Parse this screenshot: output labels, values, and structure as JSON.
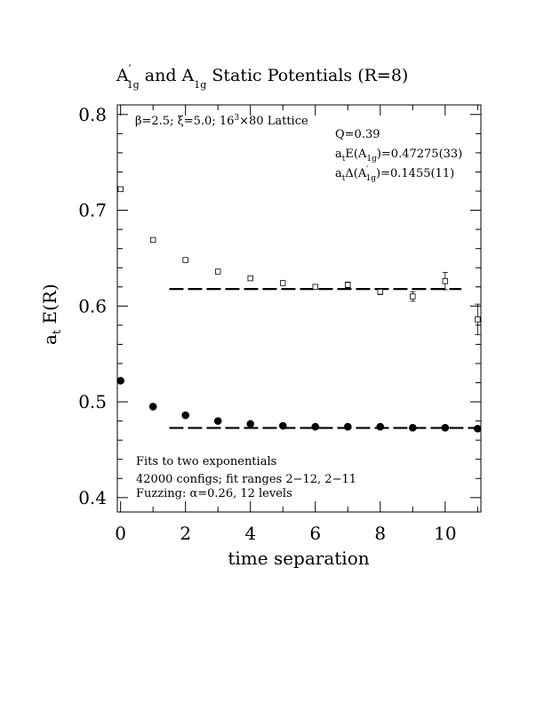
{
  "chart_data": {
    "type": "scatter",
    "title_parts": {
      "a1": "A",
      "prime": "′",
      "sub1": "1g",
      "mid": " and A",
      "sub2": "1g",
      "rest": " Static Potentials (R=8)"
    },
    "xlabel": "time separation",
    "ylabel": {
      "main": "a",
      "sub": "t",
      "rest": " E(R)"
    },
    "xlim": [
      -0.1,
      11.1
    ],
    "ylim": [
      0.385,
      0.81
    ],
    "xticks": [
      "0",
      "2",
      "4",
      "6",
      "8",
      "10"
    ],
    "yticks": [
      "0.4",
      "0.5",
      "0.6",
      "0.7",
      "0.8"
    ],
    "series": [
      {
        "marker": "open-square",
        "x": [
          0,
          1,
          2,
          3,
          4,
          5,
          6,
          7,
          8,
          9,
          10,
          11
        ],
        "y": [
          0.722,
          0.669,
          0.648,
          0.636,
          0.629,
          0.624,
          0.62,
          0.622,
          0.615,
          0.61,
          0.626,
          0.586
        ],
        "err": [
          0.001,
          0.001,
          0.001,
          0.001,
          0.001,
          0.0015,
          0.002,
          0.003,
          0.003,
          0.005,
          0.009,
          0.016
        ]
      },
      {
        "marker": "filled-circle",
        "x": [
          0,
          1,
          2,
          3,
          4,
          5,
          6,
          7,
          8,
          9,
          10,
          11
        ],
        "y": [
          0.522,
          0.495,
          0.486,
          0.48,
          0.477,
          0.475,
          0.474,
          0.474,
          0.474,
          0.473,
          0.473,
          0.472
        ],
        "err": [
          0,
          0,
          0,
          0,
          0,
          0,
          0,
          0,
          0,
          0,
          0,
          0.001
        ]
      }
    ],
    "fit_lines": [
      {
        "y": 0.6178,
        "x_range": [
          1.5,
          10.5
        ]
      },
      {
        "y": 0.47275,
        "x_range": [
          1.5,
          11
        ]
      }
    ],
    "annotations": {
      "lattice": {
        "beta": "β=2.5;",
        "xi": " ξ=5.0;",
        "size": " 16",
        "sup": "3",
        "rest": "×80 Lattice"
      },
      "q": "Q=0.39",
      "energy": {
        "pre": "a",
        "sub": "t",
        "mid": "E(A",
        "sub2": "1g",
        "val": ")=0.47275(33)"
      },
      "delta": {
        "pre": "a",
        "sub": "t",
        "mid": "Δ(A",
        "prime": "′",
        "sub2": "1g",
        "val": ")=0.1455(11)"
      },
      "fits": "Fits to two exponentials",
      "configs": "42000 configs; fit ranges 2−12, 2−11",
      "fuzzing": {
        "pre": "Fuzzing: ",
        "alpha": "α",
        "rest": "=0.26, 12 levels"
      }
    }
  }
}
